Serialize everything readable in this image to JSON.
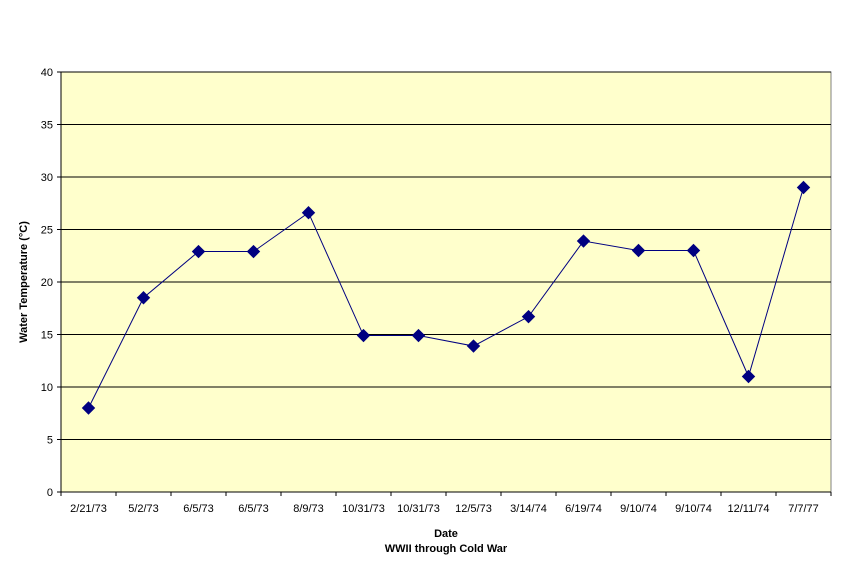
{
  "chart_data": {
    "type": "line",
    "title": "",
    "xlabel": "Date",
    "xlabel_sub": "WWII through Cold War",
    "ylabel": "Water Temperature (°C)",
    "ylim": [
      0,
      40
    ],
    "yticks": [
      0,
      5,
      10,
      15,
      20,
      25,
      30,
      35,
      40
    ],
    "grid": true,
    "legend": "none",
    "categories": [
      "2/21/73",
      "5/2/73",
      "6/5/73",
      "6/5/73",
      "8/9/73",
      "10/31/73",
      "10/31/73",
      "12/5/73",
      "3/14/74",
      "6/19/74",
      "9/10/74",
      "9/10/74",
      "12/11/74",
      "7/7/77"
    ],
    "series": [
      {
        "values": [
          8.0,
          18.5,
          22.9,
          22.9,
          26.6,
          14.9,
          14.9,
          13.9,
          16.7,
          23.9,
          23.0,
          23.0,
          11.0,
          29.0
        ],
        "color": "#000080"
      }
    ],
    "colors": {
      "plot_bg": "#FFFFCC",
      "line": "#000080",
      "marker": "#000080",
      "grid": "#000000"
    }
  }
}
